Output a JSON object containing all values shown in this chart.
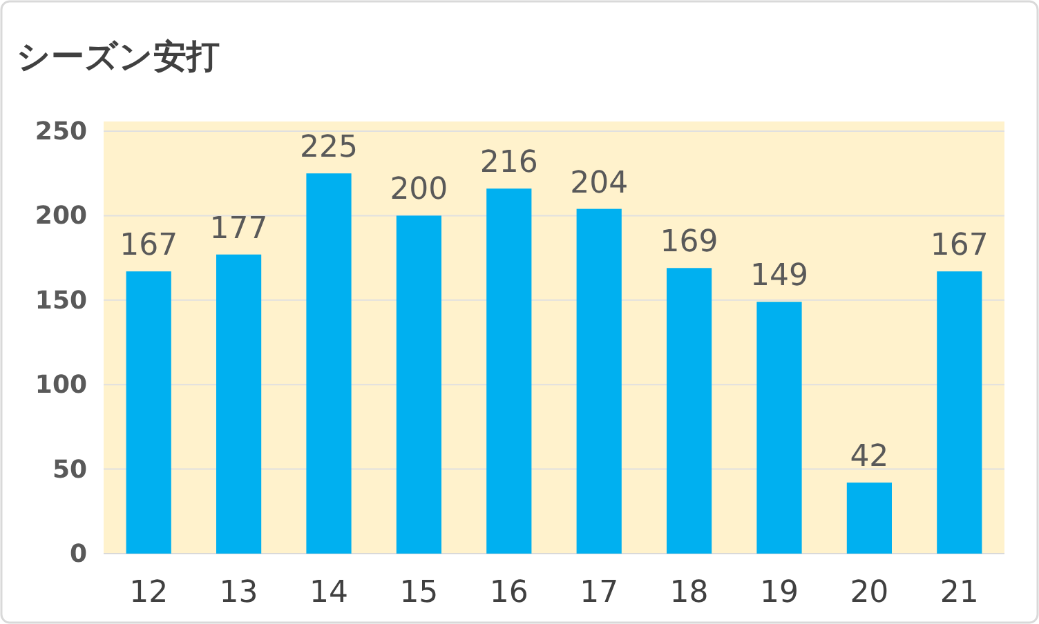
{
  "chart_data": {
    "type": "bar",
    "title": "シーズン安打",
    "categories": [
      "12",
      "13",
      "14",
      "15",
      "16",
      "17",
      "18",
      "19",
      "20",
      "21"
    ],
    "values": [
      167,
      177,
      225,
      200,
      216,
      204,
      169,
      149,
      42,
      167
    ],
    "color": "#00b0f0",
    "ylim": [
      0,
      250
    ],
    "yticks": [
      0,
      50,
      100,
      150,
      200,
      250
    ],
    "grid": "y",
    "data_labels": true
  }
}
